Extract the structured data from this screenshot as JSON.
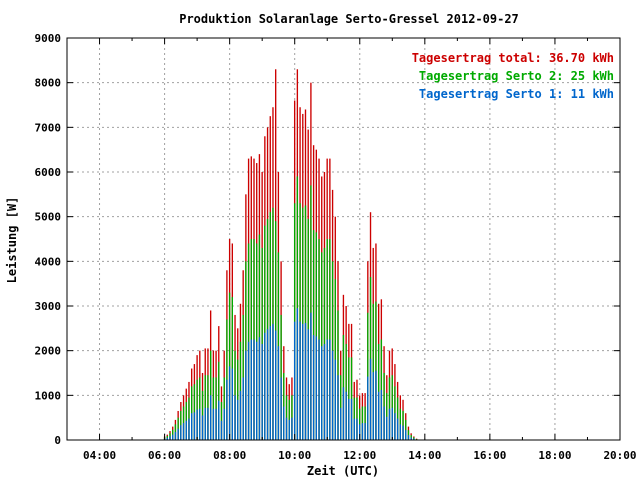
{
  "chart_data": {
    "type": "bar",
    "title": "Produktion Solaranlage Serto-Gressel 2012-09-27",
    "xlabel": "Zeit (UTC)",
    "ylabel": "Leistung [W]",
    "xlim": [
      3.0,
      20.0
    ],
    "ylim": [
      0,
      9000
    ],
    "x_ticks": [
      "04:00",
      "06:00",
      "08:00",
      "10:00",
      "12:00",
      "14:00",
      "16:00",
      "18:00",
      "20:00"
    ],
    "y_ticks": [
      "0",
      "1000",
      "2000",
      "3000",
      "4000",
      "5000",
      "6000",
      "7000",
      "8000",
      "9000"
    ],
    "grid": true,
    "legend_position": "top-right",
    "legend": [
      {
        "label": "Tagesertrag total: 36.70 kWh",
        "color": "#cc0000"
      },
      {
        "label": "Tagesertrag Serto 2: 25 kWh",
        "color": "#00aa00"
      },
      {
        "label": "Tagesertrag Serto 1: 11 kWh",
        "color": "#0066cc"
      }
    ],
    "series": [
      {
        "name": "Tagesertrag total",
        "color": "#cc0000",
        "x_start_hours": 6.0,
        "x_step_hours": 0.0833,
        "values": [
          80,
          120,
          200,
          300,
          450,
          650,
          850,
          1000,
          1150,
          1300,
          1600,
          1700,
          1900,
          2000,
          1500,
          2050,
          2050,
          2900,
          2000,
          2000,
          2550,
          1200,
          2000,
          3800,
          4500,
          4400,
          2800,
          2500,
          3050,
          3800,
          5500,
          6300,
          6350,
          6300,
          6200,
          6400,
          6000,
          6800,
          7000,
          7250,
          7450,
          8300,
          6000,
          4000,
          2100,
          1400,
          1250,
          1400,
          7600,
          8300,
          7450,
          7300,
          7400,
          6950,
          8000,
          6600,
          6500,
          6300,
          5900,
          6000,
          6300,
          6300,
          5600,
          5000,
          4000,
          2000,
          3250,
          3000,
          2600,
          2600,
          1300,
          1350,
          1000,
          1050,
          1050,
          4000,
          5100,
          4300,
          4400,
          3050,
          3150,
          2100,
          1450,
          2000,
          2050,
          1700,
          1300,
          1000,
          900,
          600,
          300,
          150,
          80,
          30
        ]
      },
      {
        "name": "Tagesertrag Serto 2",
        "color": "#00aa00",
        "x_start_hours": 6.0,
        "x_step_hours": 0.0833,
        "values": [
          60,
          90,
          150,
          230,
          350,
          500,
          650,
          750,
          850,
          950,
          1200,
          1250,
          1350,
          1400,
          1100,
          1450,
          1450,
          2000,
          1400,
          1400,
          1750,
          850,
          1400,
          2700,
          3300,
          3200,
          2000,
          1800,
          2200,
          2800,
          4000,
          4400,
          4500,
          4500,
          4400,
          4600,
          4300,
          4800,
          4950,
          5100,
          5200,
          4900,
          4200,
          2800,
          1500,
          1000,
          900,
          1000,
          5300,
          5900,
          5300,
          5200,
          5250,
          4950,
          5700,
          4700,
          4650,
          4500,
          4200,
          4300,
          4500,
          4500,
          4000,
          3600,
          2900,
          1450,
          2350,
          2150,
          1850,
          1850,
          950,
          950,
          700,
          750,
          750,
          2850,
          3650,
          3050,
          3100,
          2150,
          2250,
          1500,
          1050,
          1400,
          1450,
          1200,
          950,
          700,
          650,
          450,
          220,
          110,
          60,
          20
        ]
      },
      {
        "name": "Tagesertrag Serto 1",
        "color": "#0066cc",
        "x_start_hours": 6.0,
        "x_step_hours": 0.0833,
        "values": [
          30,
          50,
          80,
          120,
          180,
          250,
          330,
          380,
          430,
          480,
          600,
          620,
          680,
          700,
          550,
          720,
          720,
          1000,
          700,
          700,
          880,
          430,
          700,
          1350,
          1650,
          1600,
          1000,
          900,
          1100,
          1400,
          2000,
          2200,
          2250,
          2250,
          2200,
          2300,
          2150,
          2400,
          2480,
          2550,
          2600,
          2450,
          2100,
          1400,
          750,
          500,
          450,
          500,
          2650,
          2950,
          2650,
          2600,
          2620,
          2480,
          2850,
          2350,
          2320,
          2250,
          2100,
          2150,
          2250,
          2250,
          2000,
          1800,
          1450,
          720,
          1180,
          1080,
          920,
          920,
          480,
          480,
          350,
          380,
          380,
          1420,
          1820,
          1520,
          1550,
          1080,
          1120,
          750,
          520,
          700,
          720,
          600,
          480,
          350,
          320,
          220,
          110,
          55,
          30,
          10
        ]
      }
    ]
  }
}
